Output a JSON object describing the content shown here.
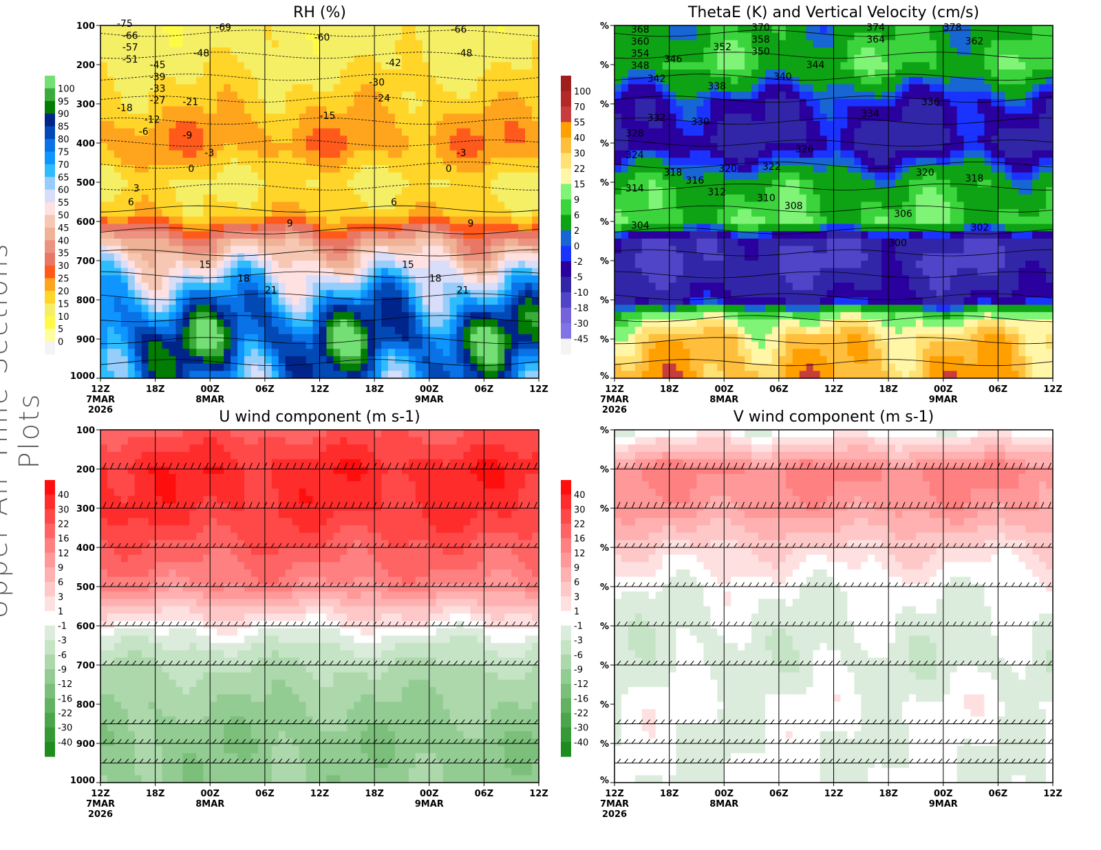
{
  "side_title": "Upper-Air Time Sections Plots",
  "time_ticks": [
    "12Z",
    "18Z",
    "00Z",
    "06Z",
    "12Z",
    "18Z",
    "00Z",
    "06Z",
    "12Z"
  ],
  "date_labels": [
    {
      "tick": 0,
      "text": "7MAR"
    },
    {
      "tick": 0,
      "text2": "2026"
    },
    {
      "tick": 2,
      "text": "8MAR"
    },
    {
      "tick": 6,
      "text": "9MAR"
    }
  ],
  "pressure_ticks": [
    100,
    200,
    300,
    400,
    500,
    600,
    700,
    800,
    900,
    1000
  ],
  "chart_data": [
    {
      "type": "heatmap",
      "title": "RH (%)",
      "yaxis_labels": "pressure",
      "ylim": [
        1000,
        100
      ],
      "levels": [
        "0",
        "5",
        "10",
        "15",
        "20",
        "25",
        "30",
        "35",
        "40",
        "45",
        "50",
        "55",
        "60",
        "65",
        "70",
        "75",
        "80",
        "85",
        "90",
        "95",
        "100"
      ],
      "colors": [
        "#f4f4f4",
        "#fffe9e",
        "#fffa48",
        "#f5ef66",
        "#ffd52a",
        "#ffa51d",
        "#ff5a1c",
        "#e87865",
        "#ec9280",
        "#efb296",
        "#f6c8b4",
        "#ffe1e2",
        "#d8defa",
        "#97cdfa",
        "#2fbcff",
        "#0e95ff",
        "#0872e6",
        "#0349b6",
        "#00248a",
        "#037c03",
        "#3bac3b",
        "#74df74"
      ],
      "profile": {
        "p": [
          100,
          200,
          300,
          400,
          500,
          580,
          650,
          750,
          850,
          900,
          1000
        ],
        "v": [
          12,
          14,
          18,
          24,
          14,
          18,
          40,
          62,
          82,
          88,
          76
        ]
      },
      "contour_labels": [
        [
          "-75",
          0.3,
          100
        ],
        [
          "-66",
          0.4,
          115
        ],
        [
          "-57",
          0.4,
          145
        ],
        [
          "-51",
          0.4,
          170
        ],
        [
          "-45",
          0.9,
          205
        ],
        [
          "-39",
          0.9,
          225
        ],
        [
          "-33",
          0.9,
          255
        ],
        [
          "-27",
          0.9,
          285
        ],
        [
          "-18",
          0.3,
          315
        ],
        [
          "-12",
          0.8,
          345
        ],
        [
          "-6",
          0.7,
          375
        ],
        [
          "0",
          1.6,
          470
        ],
        [
          "3",
          0.6,
          520
        ],
        [
          "6",
          0.5,
          555
        ],
        [
          "9",
          3.4,
          610
        ],
        [
          "15",
          1.8,
          715
        ],
        [
          "18",
          2.5,
          750
        ],
        [
          "21",
          3.0,
          780
        ],
        [
          "-69",
          2.1,
          110
        ],
        [
          "-48",
          1.7,
          175
        ],
        [
          "-21",
          1.5,
          300
        ],
        [
          "-9",
          1.5,
          385
        ],
        [
          "-3",
          1.9,
          430
        ],
        [
          "-24",
          5.0,
          290
        ],
        [
          "-15",
          4.0,
          335
        ],
        [
          "-60",
          3.9,
          135
        ],
        [
          "-42",
          5.2,
          200
        ],
        [
          "-30",
          4.9,
          250
        ],
        [
          "15",
          5.5,
          715
        ],
        [
          "18",
          6.0,
          750
        ],
        [
          "21",
          6.5,
          780
        ],
        [
          "9",
          6.7,
          610
        ],
        [
          "6",
          5.3,
          555
        ],
        [
          "-3",
          6.5,
          430
        ],
        [
          "0",
          6.3,
          470
        ],
        [
          "-66",
          6.4,
          115
        ],
        [
          "-48",
          6.5,
          175
        ]
      ]
    },
    {
      "type": "heatmap",
      "title": "ThetaE (K) and Vertical Velocity (cm/s)",
      "yaxis_labels": "%",
      "ylim": [
        1000,
        100
      ],
      "levels": [
        "-45",
        "-30",
        "-18",
        "-10",
        "-5",
        "-2",
        "0",
        "2",
        "6",
        "9",
        "15",
        "22",
        "30",
        "40",
        "55",
        "70",
        "100"
      ],
      "colors": [
        "#f4f4f4",
        "#8073e6",
        "#7563dc",
        "#5045c8",
        "#3226a8",
        "#2a009e",
        "#1a33ff",
        "#1766d4",
        "#0ea314",
        "#3cd43c",
        "#7ff477",
        "#fff6a8",
        "#ffe174",
        "#ffbe3c",
        "#ffa000",
        "#c93c3c",
        "#b42828",
        "#a01e1e"
      ],
      "profile": {
        "p": [
          100,
          200,
          300,
          400,
          500,
          600,
          650,
          700,
          800,
          850,
          900,
          1000
        ],
        "v": [
          4,
          7,
          -3,
          -6,
          5,
          8,
          -8,
          -10,
          -5,
          14,
          30,
          40
        ]
      },
      "contour_labels": [
        [
          "368",
          0.3,
          115
        ],
        [
          "360",
          0.3,
          135
        ],
        [
          "354",
          0.3,
          155
        ],
        [
          "348",
          0.3,
          175
        ],
        [
          "346",
          0.9,
          190
        ],
        [
          "342",
          0.6,
          240
        ],
        [
          "338",
          1.7,
          260
        ],
        [
          "332",
          0.6,
          340
        ],
        [
          "330",
          1.4,
          350
        ],
        [
          "328",
          0.2,
          380
        ],
        [
          "324",
          0.2,
          435
        ],
        [
          "318",
          0.9,
          480
        ],
        [
          "316",
          1.3,
          500
        ],
        [
          "314",
          0.2,
          520
        ],
        [
          "312",
          1.7,
          530
        ],
        [
          "310",
          2.6,
          545
        ],
        [
          "308",
          3.1,
          565
        ],
        [
          "304",
          0.3,
          615
        ],
        [
          "300",
          5.0,
          660
        ],
        [
          "302",
          6.5,
          620
        ],
        [
          "306",
          5.1,
          585
        ],
        [
          "370",
          2.5,
          110
        ],
        [
          "352",
          1.8,
          160
        ],
        [
          "358",
          2.5,
          140
        ],
        [
          "350",
          2.5,
          155
        ],
        [
          "344",
          3.5,
          205
        ],
        [
          "340",
          2.9,
          235
        ],
        [
          "334",
          4.5,
          330
        ],
        [
          "326",
          3.3,
          420
        ],
        [
          "322",
          2.7,
          465
        ],
        [
          "320",
          1.9,
          470
        ],
        [
          "374",
          4.6,
          110
        ],
        [
          "364",
          4.6,
          130
        ],
        [
          "378",
          6.0,
          110
        ],
        [
          "362",
          6.4,
          145
        ],
        [
          "336",
          5.6,
          300
        ],
        [
          "320",
          5.5,
          480
        ],
        [
          "318",
          6.4,
          495
        ]
      ]
    },
    {
      "type": "heatmap",
      "title": "U wind component (m s-1)",
      "yaxis_labels": "pressure",
      "ylim": [
        1000,
        100
      ],
      "levels": [
        "-40",
        "-30",
        "-22",
        "-16",
        "-12",
        "-9",
        "-6",
        "-3",
        "-1",
        "1",
        "3",
        "6",
        "9",
        "12",
        "16",
        "22",
        "30",
        "40"
      ],
      "colors": [
        "#1e8c1e",
        "#359a35",
        "#4ba54b",
        "#62b262",
        "#7bbf7b",
        "#93cc93",
        "#acd8ac",
        "#c5e3c5",
        "#dcecdc",
        "#ffffff",
        "#ffe0e0",
        "#ffc8c8",
        "#ffb0b0",
        "#ff9898",
        "#ff8080",
        "#ff6464",
        "#ff4848",
        "#ff2c2c",
        "#ff0e0e"
      ],
      "profile": {
        "p": [
          100,
          200,
          300,
          400,
          500,
          560,
          620,
          700,
          800,
          900,
          1000
        ],
        "v": [
          20,
          36,
          32,
          20,
          12,
          4,
          -1,
          -6,
          -9,
          -11,
          -10
        ]
      }
    },
    {
      "type": "heatmap",
      "title": "V wind component (m s-1)",
      "yaxis_labels": "%",
      "ylim": [
        1000,
        100
      ],
      "levels": [
        "-40",
        "-30",
        "-22",
        "-16",
        "-12",
        "-9",
        "-6",
        "-3",
        "-1",
        "1",
        "3",
        "6",
        "9",
        "12",
        "16",
        "22",
        "30",
        "40"
      ],
      "colors": [
        "#1e8c1e",
        "#359a35",
        "#4ba54b",
        "#62b262",
        "#7bbf7b",
        "#93cc93",
        "#acd8ac",
        "#c5e3c5",
        "#dcecdc",
        "#ffffff",
        "#ffe0e0",
        "#ffc8c8",
        "#ffb0b0",
        "#ff9898",
        "#ff8080",
        "#ff6464",
        "#ff4848",
        "#ff2c2c",
        "#ff0e0e"
      ],
      "profile": {
        "p": [
          100,
          150,
          200,
          300,
          400,
          500,
          600,
          700,
          800,
          900,
          1000
        ],
        "v": [
          -1,
          5,
          13,
          10,
          3,
          -0.5,
          -1.5,
          -2,
          -0.5,
          -1,
          -1
        ]
      }
    }
  ],
  "barb_levels": [
    200,
    300,
    400,
    500,
    600,
    700,
    850,
    900,
    950
  ]
}
